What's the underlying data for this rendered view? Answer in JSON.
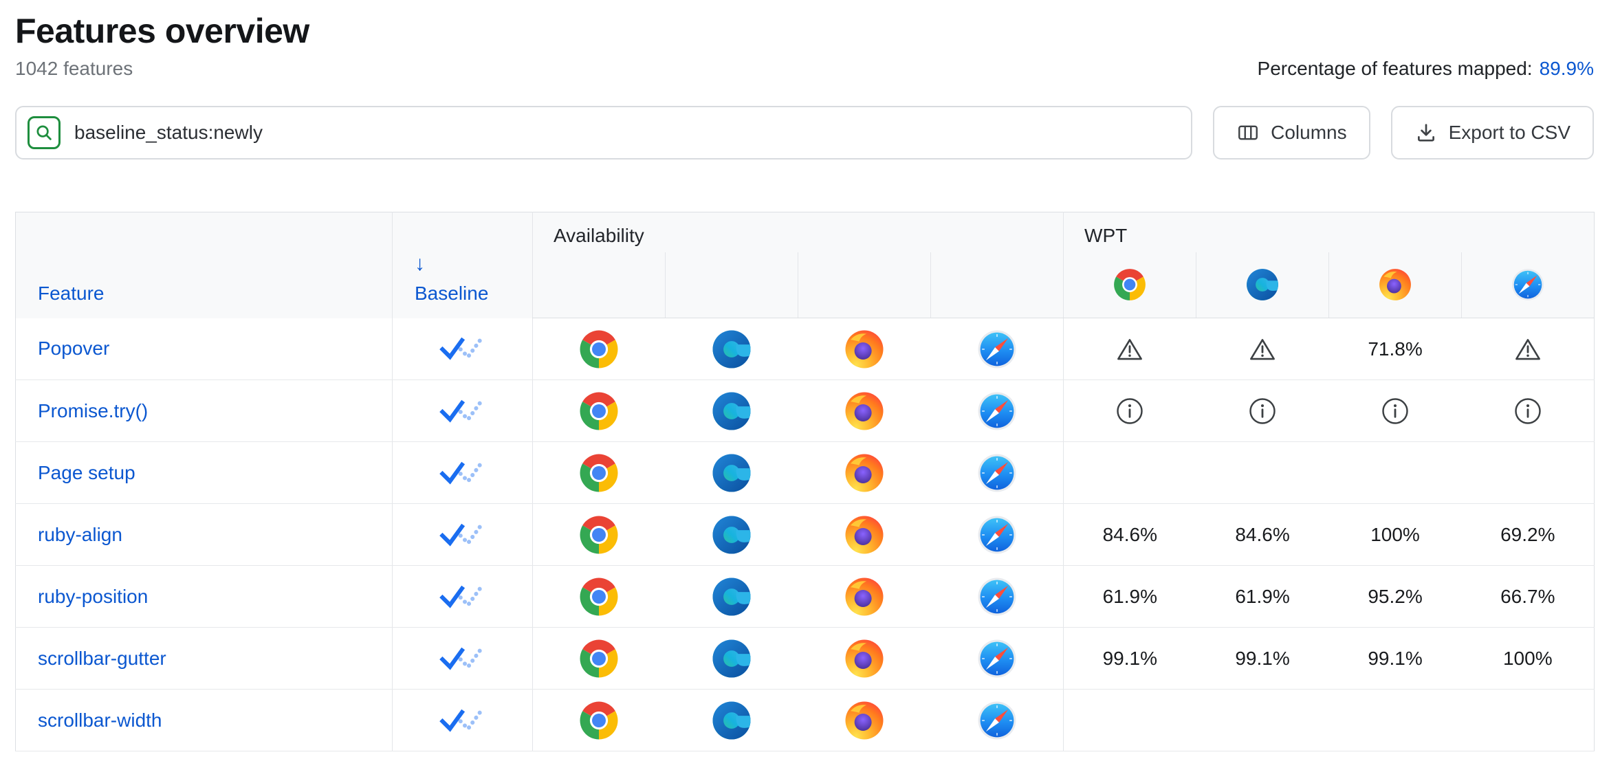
{
  "header": {
    "title": "Features overview",
    "subtitle": "1042 features",
    "mapped_label": "Percentage of features mapped:",
    "mapped_value": "89.9%"
  },
  "toolbar": {
    "search_value": "baseline_status:newly",
    "columns_label": "Columns",
    "export_label": "Export to CSV"
  },
  "table": {
    "columns": {
      "feature": "Feature",
      "baseline": "Baseline",
      "sort_arrow": "↓",
      "availability_group": "Availability",
      "wpt_group": "WPT"
    },
    "browsers": [
      "chrome",
      "edge",
      "firefox",
      "safari"
    ],
    "rows": [
      {
        "feature": "Popover",
        "baseline": "newly",
        "availability": [
          "chrome",
          "edge",
          "firefox",
          "safari"
        ],
        "wpt": [
          "warning",
          "warning",
          "71.8%",
          "warning"
        ]
      },
      {
        "feature": "Promise.try()",
        "baseline": "newly",
        "availability": [
          "chrome",
          "edge",
          "firefox",
          "safari"
        ],
        "wpt": [
          "info",
          "info",
          "info",
          "info"
        ]
      },
      {
        "feature": "Page setup",
        "baseline": "newly",
        "availability": [
          "chrome",
          "edge",
          "firefox",
          "safari"
        ],
        "wpt": [
          "",
          "",
          "",
          ""
        ]
      },
      {
        "feature": "ruby-align",
        "baseline": "newly",
        "availability": [
          "chrome",
          "edge",
          "firefox",
          "safari"
        ],
        "wpt": [
          "84.6%",
          "84.6%",
          "100%",
          "69.2%"
        ]
      },
      {
        "feature": "ruby-position",
        "baseline": "newly",
        "availability": [
          "chrome",
          "edge",
          "firefox",
          "safari"
        ],
        "wpt": [
          "61.9%",
          "61.9%",
          "95.2%",
          "66.7%"
        ]
      },
      {
        "feature": "scrollbar-gutter",
        "baseline": "newly",
        "availability": [
          "chrome",
          "edge",
          "firefox",
          "safari"
        ],
        "wpt": [
          "99.1%",
          "99.1%",
          "99.1%",
          "100%"
        ]
      },
      {
        "feature": "scrollbar-width",
        "baseline": "newly",
        "availability": [
          "chrome",
          "edge",
          "firefox",
          "safari"
        ],
        "wpt": [
          "",
          "",
          "",
          ""
        ]
      }
    ]
  },
  "colors": {
    "link_blue": "#0b57d0",
    "baseline_newly_blue": "#1a6df0",
    "search_icon_green": "#1e8e3e"
  }
}
